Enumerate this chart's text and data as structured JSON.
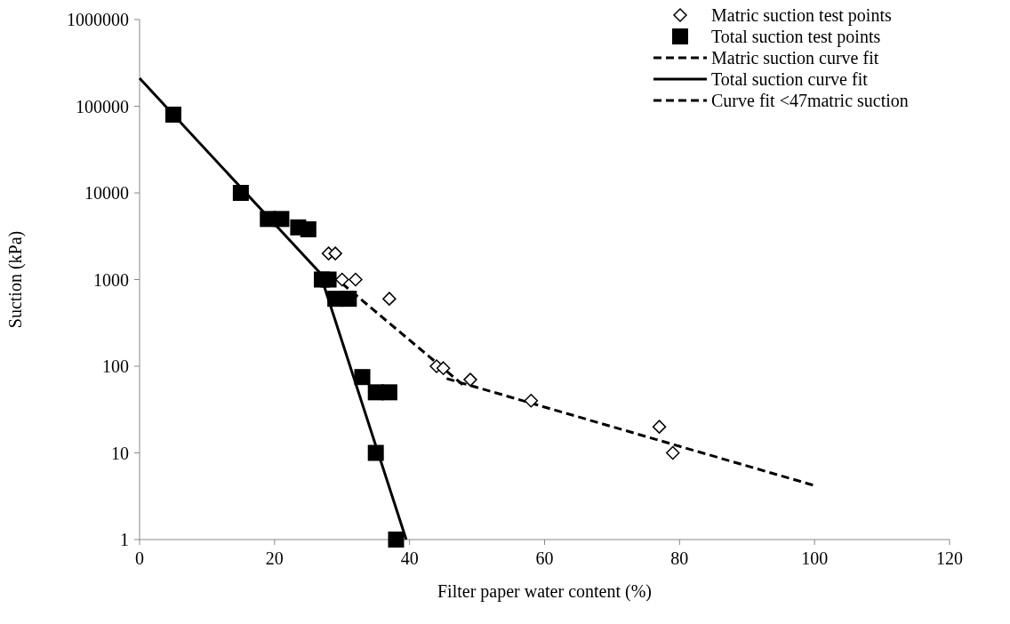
{
  "chart_data": {
    "type": "scatter",
    "xlabel": "Filter paper water content (%)",
    "ylabel": "Suction (kPa)",
    "log": "y",
    "xlim": [
      0,
      120
    ],
    "xticks": [
      0,
      20,
      40,
      60,
      80,
      100,
      120
    ],
    "ylim": [
      1,
      1000000
    ],
    "yticks": [
      1,
      10,
      100,
      1000,
      10000,
      100000,
      1000000
    ],
    "grid": false,
    "legend": "top right",
    "series": [
      {
        "name": "Matric suction test points",
        "marker": "diamond",
        "color": "#000000",
        "x": [
          28,
          29,
          30,
          32,
          37,
          44,
          45,
          49,
          58,
          77,
          79
        ],
        "values": [
          2000,
          2000,
          1000,
          1000,
          600,
          100,
          95,
          70,
          40,
          20,
          10
        ]
      },
      {
        "name": "Total suction test points",
        "marker": "square",
        "color": "#000000",
        "x": [
          5,
          15,
          19,
          21,
          23.5,
          25,
          27,
          28,
          29,
          31,
          33,
          35,
          37,
          35,
          38
        ],
        "values": [
          80000,
          10000,
          5000,
          5000,
          4000,
          3800,
          1000,
          1000,
          600,
          600,
          75,
          50,
          50,
          10,
          1
        ]
      },
      {
        "name": "Matric suction curve fit",
        "type": "line",
        "line_style": "dashed",
        "marker": "none",
        "color": "#000000",
        "x": [
          45.5,
          100
        ],
        "values": [
          72,
          4.2
        ]
      },
      {
        "name": "Total suction curve fit",
        "type": "line",
        "line_style": "solid",
        "marker": "none",
        "color": "#000000",
        "x": [
          0,
          26.7,
          39.5
        ],
        "values": [
          210000,
          1200,
          1
        ]
      },
      {
        "name": "Curve fit <47matric suction",
        "type": "line",
        "line_style": "dashed",
        "marker": "none",
        "color": "#000000",
        "x": [
          30,
          48
        ],
        "values": [
          900,
          60
        ]
      }
    ]
  }
}
